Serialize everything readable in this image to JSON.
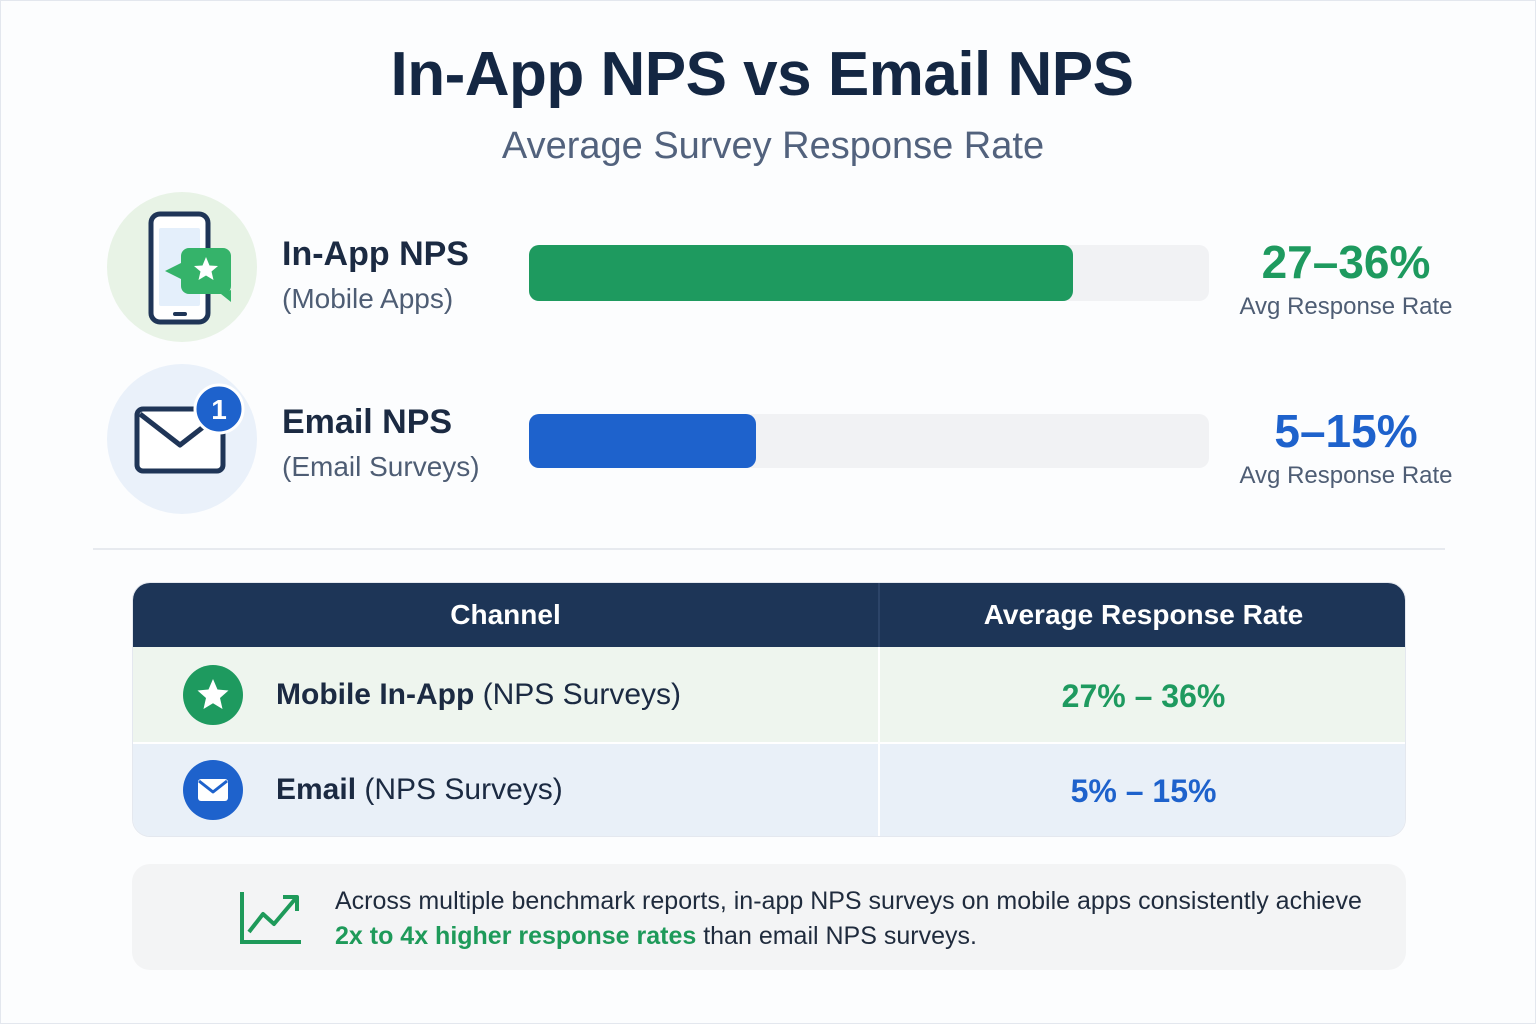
{
  "title": "In-App NPS vs Email NPS",
  "subtitle": "Average Survey Response Rate",
  "colors": {
    "green": "#1e9a5f",
    "blue": "#1e62cc",
    "navy": "#1d3557",
    "track": "#f1f2f4"
  },
  "rows": [
    {
      "label": "In-App NPS",
      "sublabel": "(Mobile Apps)",
      "icon": "smartphone-star-icon",
      "range": "27–36%",
      "range_sub": "Avg Response Rate",
      "color": "#1e9a5f"
    },
    {
      "label": "Email NPS",
      "sublabel": "(Email Surveys)",
      "icon": "envelope-badge-icon",
      "badge": "1",
      "range": "5–15%",
      "range_sub": "Avg Response Rate",
      "color": "#1e62cc"
    }
  ],
  "chart_data": {
    "type": "bar",
    "orientation": "horizontal",
    "title": "In-App NPS vs Email NPS",
    "subtitle": "Average Survey Response Rate",
    "categories": [
      "In-App NPS",
      "Email NPS"
    ],
    "ranges": [
      [
        27,
        36
      ],
      [
        5,
        15
      ]
    ],
    "values": [
      36,
      15
    ],
    "unit": "%",
    "xlim": [
      0,
      45
    ],
    "grid": false
  },
  "table": {
    "headers": [
      "Channel",
      "Average Response Rate"
    ],
    "rows": [
      {
        "icon": "star-circle-icon",
        "name_bold": "Mobile In-App",
        "name_rest": " (NPS Surveys)",
        "rate": "27% – 36%",
        "color": "#1e9a5f"
      },
      {
        "icon": "envelope-circle-icon",
        "name_bold": "Email",
        "name_rest": " (NPS Surveys)",
        "rate": "5% – 15%",
        "color": "#1e62cc"
      }
    ]
  },
  "note": {
    "icon": "trending-up-icon",
    "text_before": "Across multiple benchmark reports, in-app NPS surveys on mobile apps consistently achieve ",
    "highlight": "2x to 4x higher response rates",
    "text_after": " than email NPS surveys."
  }
}
